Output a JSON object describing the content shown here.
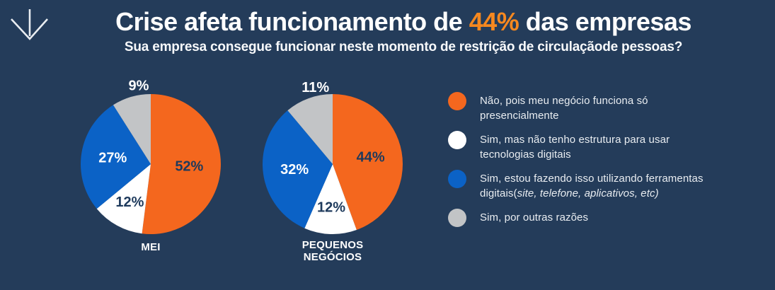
{
  "header": {
    "title_before": "Crise afeta funcionamento de ",
    "title_highlight": "44%",
    "title_after": " das empresas",
    "subtitle": "Sua empresa consegue funcionar neste momento de restrição de circulaçãode pessoas?"
  },
  "colors": {
    "background": "#243C5A",
    "title_highlight": "#F6881F",
    "orange": "#F4671E",
    "white": "#FFFFFF",
    "blue": "#0B62C6",
    "gray": "#C2C4C6",
    "label_dark": "#1E3A5C",
    "label_light": "#FFFFFF"
  },
  "chart_data": [
    {
      "type": "pie",
      "title": "MEI",
      "categories": [
        "Não, pois meu negócio funciona só presencialmente",
        "Sim, mas não tenho estrutura para usar tecnologias digitais",
        "Sim, estou fazendo isso utilizando ferramentas digitais (site, telefone, aplicativos, etc)",
        "Sim, por outras razões"
      ],
      "values": [
        52,
        12,
        27,
        9
      ],
      "labels": [
        "52%",
        "12%",
        "27%",
        "9%"
      ],
      "colors": [
        "#F4671E",
        "#FFFFFF",
        "#0B62C6",
        "#C2C4C6"
      ],
      "start_angle": "top",
      "direction": "clockwise"
    },
    {
      "type": "pie",
      "title": "PEQUENOS NEGÓCIOS",
      "categories": [
        "Não, pois meu negócio funciona só presencialmente",
        "Sim, mas não tenho estrutura para usar tecnologias digitais",
        "Sim, estou fazendo isso utilizando ferramentas digitais (site, telefone, aplicativos, etc)",
        "Sim, por outras razões"
      ],
      "values": [
        44,
        12,
        32,
        11
      ],
      "labels": [
        "44%",
        "12%",
        "32%",
        "11%"
      ],
      "colors": [
        "#F4671E",
        "#FFFFFF",
        "#0B62C6",
        "#C2C4C6"
      ],
      "start_angle": "top",
      "direction": "clockwise"
    }
  ],
  "legend": {
    "items": [
      {
        "name": "orange",
        "color": "#F4671E",
        "label": "Não, pois meu negócio funciona só presencialmente",
        "label_italic": ""
      },
      {
        "name": "white",
        "color": "#FFFFFF",
        "label": "Sim, mas não tenho estrutura para usar tecnologias digitais",
        "label_italic": ""
      },
      {
        "name": "blue",
        "color": "#0B62C6",
        "label": "Sim, estou fazendo isso utilizando ferramentas digitais(",
        "label_italic": "site, telefone, aplicativos, etc)"
      },
      {
        "name": "gray",
        "color": "#C2C4C6",
        "label": "Sim, por outras razões",
        "label_italic": ""
      }
    ]
  }
}
